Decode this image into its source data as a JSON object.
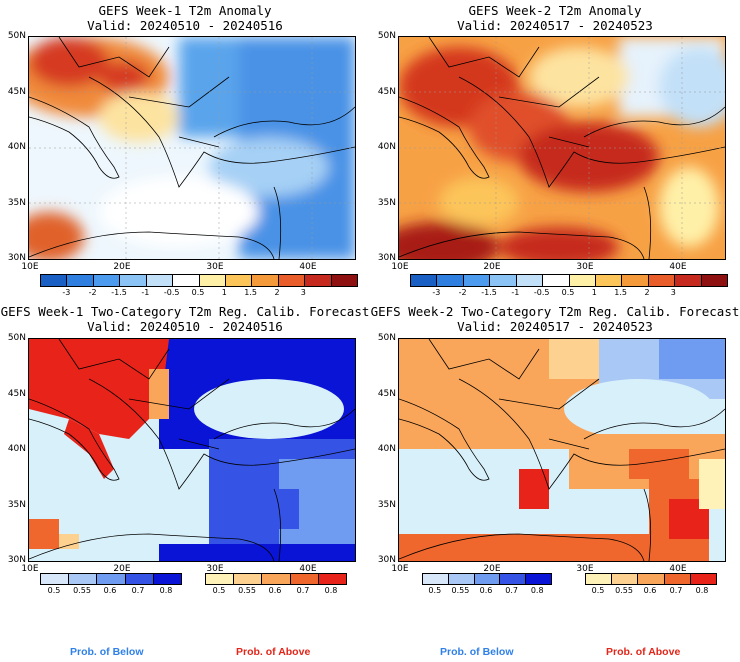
{
  "panels": [
    {
      "id": "p1",
      "title1": "GEFS Week-1 T2m Anomaly",
      "title2": "Valid: 20240510 - 20240516",
      "type": "anomaly",
      "week": 1
    },
    {
      "id": "p2",
      "title1": "GEFS Week-2 T2m Anomaly",
      "title2": "Valid: 20240517 - 20240523",
      "type": "anomaly",
      "week": 2
    },
    {
      "id": "p3",
      "title1": "GEFS Week-1 Two-Category T2m Reg. Calib. Forecast",
      "title2": "Valid: 20240510 - 20240516",
      "type": "prob",
      "week": 1
    },
    {
      "id": "p4",
      "title1": "GEFS Week-2 Two-Category T2m Reg. Calib. Forecast",
      "title2": "Valid: 20240517 - 20240523",
      "type": "prob",
      "week": 2
    }
  ],
  "lat_labels": [
    "50N",
    "45N",
    "40N",
    "35N",
    "30N"
  ],
  "lon_labels": [
    "10E",
    "20E",
    "30E",
    "40E"
  ],
  "anomaly_scale": {
    "labels": [
      "-3",
      "-2",
      "-1.5",
      "-1",
      "-0.5",
      "0.5",
      "1",
      "1.5",
      "2",
      "3"
    ],
    "colors": [
      "#1a5fc4",
      "#2f7fe0",
      "#4d9bef",
      "#8cc3f5",
      "#c2e0f8",
      "#ffffff",
      "#fff0a8",
      "#fcc55a",
      "#f59a3b",
      "#e85d2a",
      "#c62a1f",
      "#8e1010"
    ]
  },
  "prob_below_scale": {
    "labels": [
      "0.5",
      "0.55",
      "0.6",
      "0.7",
      "0.8"
    ],
    "colors": [
      "#d8e8fa",
      "#a9c8f5",
      "#6f9cf0",
      "#3554e6",
      "#0a14d6"
    ]
  },
  "prob_above_scale": {
    "labels": [
      "0.5",
      "0.55",
      "0.6",
      "0.7",
      "0.8"
    ],
    "colors": [
      "#fff2b8",
      "#fdd290",
      "#f9a55a",
      "#f0672d",
      "#e8231a"
    ]
  },
  "legend": {
    "below": "Prob. of Below",
    "above": "Prob. of Above"
  },
  "colors": {
    "below_text": "#2f80e8",
    "above_text": "#e2261a",
    "sea": "#d8f0fa"
  }
}
